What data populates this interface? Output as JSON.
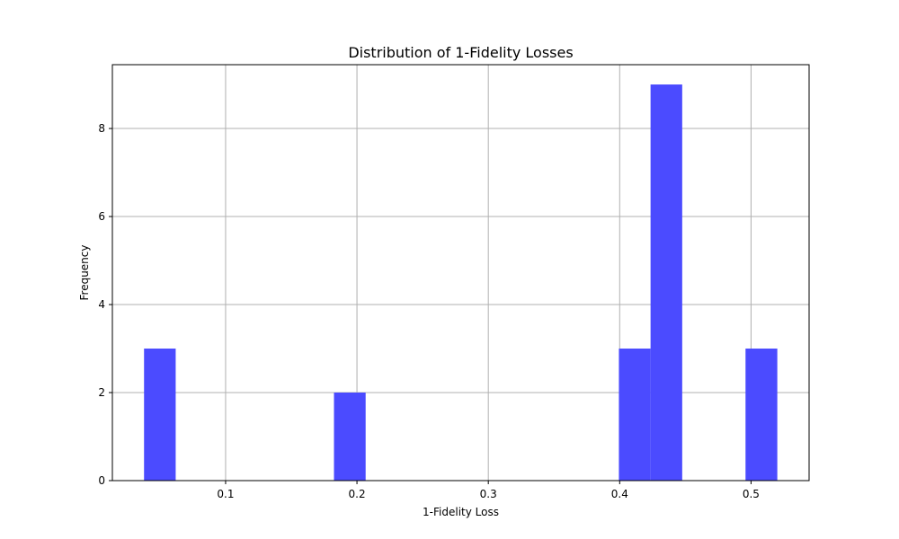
{
  "chart_data": {
    "type": "bar",
    "title": "Distribution of 1-Fidelity Losses",
    "xlabel": "1-Fidelity Loss",
    "ylabel": "Frequency",
    "xlim": [
      0.0138,
      0.5442
    ],
    "ylim": [
      0,
      9.45
    ],
    "xticks": [
      {
        "value": 0.1,
        "label": "0.1"
      },
      {
        "value": 0.2,
        "label": "0.2"
      },
      {
        "value": 0.3,
        "label": "0.3"
      },
      {
        "value": 0.4,
        "label": "0.4"
      },
      {
        "value": 0.5,
        "label": "0.5"
      }
    ],
    "yticks": [
      {
        "value": 0,
        "label": "0"
      },
      {
        "value": 2,
        "label": "2"
      },
      {
        "value": 4,
        "label": "4"
      },
      {
        "value": 6,
        "label": "6"
      },
      {
        "value": 8,
        "label": "8"
      }
    ],
    "grid": true,
    "bar_color": "#4b4bff",
    "bins": [
      {
        "x0": 0.0379,
        "x1": 0.062,
        "count": 3
      },
      {
        "x0": 0.062,
        "x1": 0.0861,
        "count": 0
      },
      {
        "x0": 0.0861,
        "x1": 0.1102,
        "count": 0
      },
      {
        "x0": 0.1102,
        "x1": 0.1343,
        "count": 0
      },
      {
        "x0": 0.1343,
        "x1": 0.1584,
        "count": 0
      },
      {
        "x0": 0.1584,
        "x1": 0.1825,
        "count": 0
      },
      {
        "x0": 0.1825,
        "x1": 0.2066,
        "count": 2
      },
      {
        "x0": 0.2066,
        "x1": 0.2307,
        "count": 0
      },
      {
        "x0": 0.2307,
        "x1": 0.2548,
        "count": 0
      },
      {
        "x0": 0.2548,
        "x1": 0.2789,
        "count": 0
      },
      {
        "x0": 0.2789,
        "x1": 0.303,
        "count": 0
      },
      {
        "x0": 0.303,
        "x1": 0.3271,
        "count": 0
      },
      {
        "x0": 0.3271,
        "x1": 0.3512,
        "count": 0
      },
      {
        "x0": 0.3512,
        "x1": 0.3753,
        "count": 0
      },
      {
        "x0": 0.3753,
        "x1": 0.3994,
        "count": 0
      },
      {
        "x0": 0.3994,
        "x1": 0.4235,
        "count": 3
      },
      {
        "x0": 0.4235,
        "x1": 0.4476,
        "count": 9
      },
      {
        "x0": 0.4476,
        "x1": 0.4717,
        "count": 0
      },
      {
        "x0": 0.4717,
        "x1": 0.4958,
        "count": 0
      },
      {
        "x0": 0.4958,
        "x1": 0.52,
        "count": 3
      }
    ]
  }
}
